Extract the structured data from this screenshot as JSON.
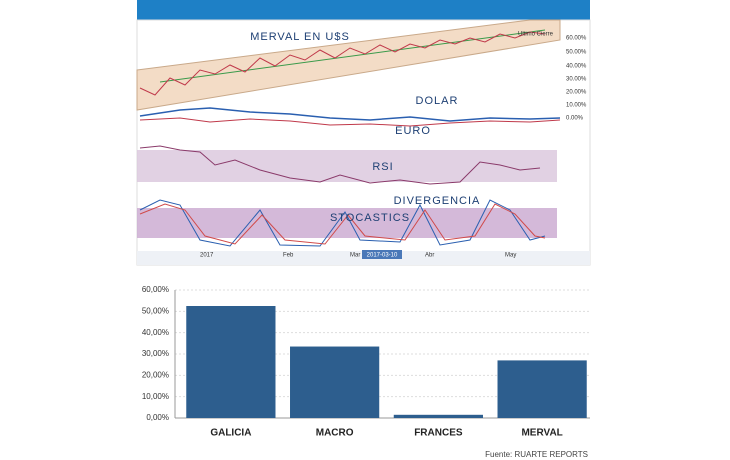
{
  "price_panel": {
    "labels": [
      "MERVAL EN U$S",
      "DOLAR",
      "EURO",
      "RSI",
      "DIVERGENCIA",
      "STOCASTICS"
    ],
    "legend": "Ultimo Cierre",
    "axis_labels": [
      "60.00%",
      "50.00%",
      "40.00%",
      "30.00%",
      "20.00%",
      "10.00%",
      "0.00%"
    ],
    "months": [
      "2017",
      "Feb",
      "Mar",
      "Abr",
      "May"
    ],
    "cursor_date": "2017-03-10"
  },
  "chart_data": {
    "type": "bar",
    "categories": [
      "GALICIA",
      "MACRO",
      "FRANCES",
      "MERVAL"
    ],
    "values": [
      52.5,
      33.5,
      1.5,
      27
    ],
    "color": "#2d5e8e",
    "ylim": [
      0,
      60
    ],
    "yticks": [
      {
        "value": 0,
        "label": "0,00%"
      },
      {
        "value": 10,
        "label": "10,00%"
      },
      {
        "value": 20,
        "label": "20,00%"
      },
      {
        "value": 30,
        "label": "30,00%"
      },
      {
        "value": 40,
        "label": "40,00%"
      },
      {
        "value": 50,
        "label": "50,00%"
      },
      {
        "value": 60,
        "label": "60,00%"
      }
    ],
    "grid": true,
    "source": "Fuente: RUARTE REPORTS"
  }
}
